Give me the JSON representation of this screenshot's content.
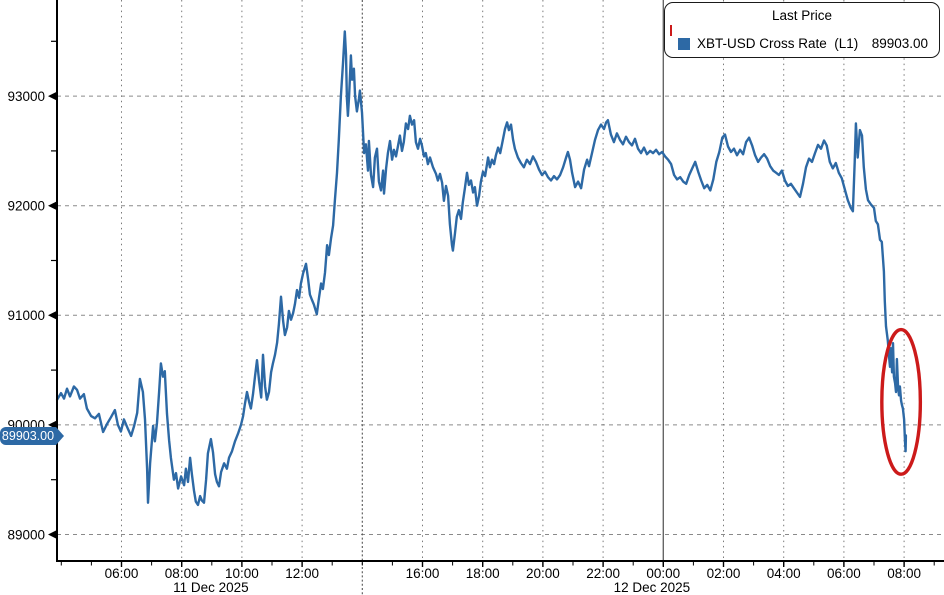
{
  "legend": {
    "title": "Last Price",
    "series": [
      {
        "swatch_color": "#2d69a5",
        "name": "XBT-USD Cross Rate  (L1)",
        "value": "89903.00"
      }
    ]
  },
  "last_price_badge": {
    "text": "89903.00",
    "value": 89903.0,
    "bg": "#2d69a5"
  },
  "annotation": {
    "type": "ellipse",
    "color": "#cc1a1a",
    "center_hour": 31.9,
    "center_price": 90210,
    "radius_hours": 0.64,
    "radius_price": 660
  },
  "chart_data": {
    "type": "line",
    "series_name": "XBT-USD Cross Rate (L1)",
    "line_color": "#2d69a5",
    "x_unit": "hours since 11 Dec 2025 00:00",
    "grid": "dashed",
    "legend_position": "top-right",
    "y_axis": {
      "ticks": [
        89000,
        90000,
        91000,
        92000,
        93000
      ],
      "minor_ticks": [
        89500,
        90500,
        91500,
        92500,
        93500
      ],
      "range_approx": [
        88750,
        93900
      ]
    },
    "x_axis": {
      "hour_labels": [
        {
          "t": 6,
          "label": "06:00"
        },
        {
          "t": 8,
          "label": "08:00"
        },
        {
          "t": 10,
          "label": "10:00"
        },
        {
          "t": 12,
          "label": "12:00"
        },
        {
          "t": 16,
          "label": "16:00"
        },
        {
          "t": 18,
          "label": "18:00"
        },
        {
          "t": 20,
          "label": "20:00"
        },
        {
          "t": 22,
          "label": "22:00"
        },
        {
          "t": 24,
          "label": "00:00"
        },
        {
          "t": 26,
          "label": "02:00"
        },
        {
          "t": 28,
          "label": "04:00"
        },
        {
          "t": 30,
          "label": "06:00"
        },
        {
          "t": 32,
          "label": "08:00"
        }
      ],
      "date_labels": [
        {
          "center_t": 8.97,
          "label": "11 Dec 2025"
        },
        {
          "center_t": 23.62,
          "label": "12 Dec 2025"
        }
      ],
      "day_separators": [
        {
          "t": 14,
          "style": "dotted"
        },
        {
          "t": 24,
          "style": "solid"
        }
      ],
      "minor_tick_hours": [
        4,
        33
      ]
    },
    "points": [
      [
        3.86,
        90230
      ],
      [
        3.99,
        90290
      ],
      [
        4.09,
        90240
      ],
      [
        4.19,
        90330
      ],
      [
        4.29,
        90260
      ],
      [
        4.42,
        90350
      ],
      [
        4.52,
        90320
      ],
      [
        4.62,
        90240
      ],
      [
        4.75,
        90280
      ],
      [
        4.85,
        90150
      ],
      [
        4.99,
        90080
      ],
      [
        5.12,
        90060
      ],
      [
        5.25,
        90100
      ],
      [
        5.39,
        89935
      ],
      [
        5.52,
        90010
      ],
      [
        5.65,
        90070
      ],
      [
        5.78,
        90135
      ],
      [
        5.88,
        90000
      ],
      [
        5.98,
        89940
      ],
      [
        6.08,
        90050
      ],
      [
        6.22,
        89960
      ],
      [
        6.32,
        89900
      ],
      [
        6.42,
        89990
      ],
      [
        6.52,
        90110
      ],
      [
        6.61,
        90420
      ],
      [
        6.71,
        90300
      ],
      [
        6.78,
        90050
      ],
      [
        6.85,
        89600
      ],
      [
        6.88,
        89290
      ],
      [
        6.95,
        89650
      ],
      [
        7.05,
        89990
      ],
      [
        7.11,
        89850
      ],
      [
        7.18,
        90020
      ],
      [
        7.25,
        90300
      ],
      [
        7.31,
        90560
      ],
      [
        7.38,
        90440
      ],
      [
        7.44,
        90490
      ],
      [
        7.51,
        90100
      ],
      [
        7.58,
        89860
      ],
      [
        7.64,
        89700
      ],
      [
        7.74,
        89500
      ],
      [
        7.81,
        89560
      ],
      [
        7.88,
        89420
      ],
      [
        7.98,
        89530
      ],
      [
        8.08,
        89450
      ],
      [
        8.14,
        89600
      ],
      [
        8.21,
        89480
      ],
      [
        8.28,
        89700
      ],
      [
        8.34,
        89550
      ],
      [
        8.41,
        89400
      ],
      [
        8.47,
        89300
      ],
      [
        8.54,
        89270
      ],
      [
        8.61,
        89350
      ],
      [
        8.67,
        89310
      ],
      [
        8.74,
        89290
      ],
      [
        8.81,
        89500
      ],
      [
        8.87,
        89740
      ],
      [
        8.97,
        89870
      ],
      [
        9.04,
        89750
      ],
      [
        9.11,
        89550
      ],
      [
        9.17,
        89480
      ],
      [
        9.24,
        89440
      ],
      [
        9.31,
        89570
      ],
      [
        9.41,
        89650
      ],
      [
        9.5,
        89600
      ],
      [
        9.57,
        89700
      ],
      [
        9.67,
        89760
      ],
      [
        9.77,
        89850
      ],
      [
        9.87,
        89920
      ],
      [
        9.97,
        90000
      ],
      [
        10.04,
        90080
      ],
      [
        10.1,
        90190
      ],
      [
        10.17,
        90300
      ],
      [
        10.24,
        90210
      ],
      [
        10.3,
        90150
      ],
      [
        10.37,
        90280
      ],
      [
        10.44,
        90450
      ],
      [
        10.5,
        90590
      ],
      [
        10.57,
        90400
      ],
      [
        10.64,
        90250
      ],
      [
        10.7,
        90640
      ],
      [
        10.77,
        90350
      ],
      [
        10.83,
        90230
      ],
      [
        10.9,
        90300
      ],
      [
        10.97,
        90480
      ],
      [
        11.03,
        90560
      ],
      [
        11.1,
        90640
      ],
      [
        11.17,
        90750
      ],
      [
        11.23,
        90920
      ],
      [
        11.3,
        91170
      ],
      [
        11.37,
        90950
      ],
      [
        11.43,
        90820
      ],
      [
        11.5,
        90890
      ],
      [
        11.56,
        91040
      ],
      [
        11.63,
        90960
      ],
      [
        11.7,
        91020
      ],
      [
        11.76,
        91100
      ],
      [
        11.83,
        91230
      ],
      [
        11.9,
        91160
      ],
      [
        11.96,
        91290
      ],
      [
        12.03,
        91380
      ],
      [
        12.13,
        91470
      ],
      [
        12.2,
        91330
      ],
      [
        12.26,
        91190
      ],
      [
        12.33,
        91140
      ],
      [
        12.39,
        91100
      ],
      [
        12.49,
        91010
      ],
      [
        12.56,
        91160
      ],
      [
        12.63,
        91290
      ],
      [
        12.69,
        91240
      ],
      [
        12.76,
        91390
      ],
      [
        12.83,
        91640
      ],
      [
        12.89,
        91550
      ],
      [
        12.96,
        91700
      ],
      [
        13.03,
        91820
      ],
      [
        13.09,
        92050
      ],
      [
        13.16,
        92300
      ],
      [
        13.22,
        92600
      ],
      [
        13.29,
        93000
      ],
      [
        13.36,
        93300
      ],
      [
        13.42,
        93590
      ],
      [
        13.46,
        93380
      ],
      [
        13.49,
        92980
      ],
      [
        13.52,
        92820
      ],
      [
        13.56,
        93000
      ],
      [
        13.62,
        93370
      ],
      [
        13.66,
        93150
      ],
      [
        13.72,
        93250
      ],
      [
        13.76,
        93000
      ],
      [
        13.82,
        92860
      ],
      [
        13.89,
        92980
      ],
      [
        13.92,
        93050
      ],
      [
        13.99,
        92850
      ],
      [
        14.06,
        92480
      ],
      [
        14.12,
        92560
      ],
      [
        14.19,
        92320
      ],
      [
        14.22,
        92590
      ],
      [
        14.29,
        92280
      ],
      [
        14.36,
        92170
      ],
      [
        14.42,
        92440
      ],
      [
        14.49,
        92520
      ],
      [
        14.55,
        92220
      ],
      [
        14.62,
        92140
      ],
      [
        14.69,
        92320
      ],
      [
        14.72,
        92110
      ],
      [
        14.79,
        92340
      ],
      [
        14.85,
        92480
      ],
      [
        14.92,
        92590
      ],
      [
        14.99,
        92420
      ],
      [
        15.05,
        92510
      ],
      [
        15.12,
        92450
      ],
      [
        15.19,
        92550
      ],
      [
        15.25,
        92640
      ],
      [
        15.32,
        92500
      ],
      [
        15.38,
        92580
      ],
      [
        15.45,
        92750
      ],
      [
        15.52,
        92700
      ],
      [
        15.58,
        92820
      ],
      [
        15.65,
        92740
      ],
      [
        15.72,
        92780
      ],
      [
        15.78,
        92580
      ],
      [
        15.85,
        92520
      ],
      [
        15.92,
        92610
      ],
      [
        15.98,
        92550
      ],
      [
        16.05,
        92450
      ],
      [
        16.11,
        92480
      ],
      [
        16.18,
        92380
      ],
      [
        16.25,
        92440
      ],
      [
        16.35,
        92350
      ],
      [
        16.45,
        92290
      ],
      [
        16.51,
        92230
      ],
      [
        16.58,
        92290
      ],
      [
        16.65,
        92210
      ],
      [
        16.71,
        92045
      ],
      [
        16.78,
        92180
      ],
      [
        16.85,
        92090
      ],
      [
        16.91,
        91830
      ],
      [
        16.98,
        91640
      ],
      [
        17.01,
        91590
      ],
      [
        17.08,
        91750
      ],
      [
        17.14,
        91900
      ],
      [
        17.21,
        91960
      ],
      [
        17.28,
        91880
      ],
      [
        17.34,
        92030
      ],
      [
        17.41,
        92160
      ],
      [
        17.48,
        92300
      ],
      [
        17.54,
        92190
      ],
      [
        17.61,
        92230
      ],
      [
        17.68,
        92120
      ],
      [
        17.74,
        92170
      ],
      [
        17.81,
        92000
      ],
      [
        17.88,
        92090
      ],
      [
        17.94,
        92220
      ],
      [
        18.01,
        92310
      ],
      [
        18.08,
        92270
      ],
      [
        18.18,
        92440
      ],
      [
        18.24,
        92350
      ],
      [
        18.31,
        92420
      ],
      [
        18.38,
        92380
      ],
      [
        18.44,
        92460
      ],
      [
        18.51,
        92530
      ],
      [
        18.58,
        92480
      ],
      [
        18.64,
        92560
      ],
      [
        18.74,
        92700
      ],
      [
        18.81,
        92760
      ],
      [
        18.87,
        92690
      ],
      [
        18.94,
        92740
      ],
      [
        19.01,
        92600
      ],
      [
        19.07,
        92520
      ],
      [
        19.17,
        92440
      ],
      [
        19.27,
        92390
      ],
      [
        19.37,
        92350
      ],
      [
        19.47,
        92420
      ],
      [
        19.57,
        92380
      ],
      [
        19.67,
        92450
      ],
      [
        19.77,
        92400
      ],
      [
        19.87,
        92330
      ],
      [
        19.97,
        92280
      ],
      [
        20.07,
        92310
      ],
      [
        20.17,
        92260
      ],
      [
        20.27,
        92230
      ],
      [
        20.37,
        92270
      ],
      [
        20.47,
        92240
      ],
      [
        20.57,
        92280
      ],
      [
        20.67,
        92350
      ],
      [
        20.77,
        92440
      ],
      [
        20.83,
        92490
      ],
      [
        20.9,
        92420
      ],
      [
        20.97,
        92300
      ],
      [
        21.07,
        92170
      ],
      [
        21.17,
        92220
      ],
      [
        21.27,
        92160
      ],
      [
        21.37,
        92330
      ],
      [
        21.47,
        92420
      ],
      [
        21.53,
        92360
      ],
      [
        21.63,
        92480
      ],
      [
        21.73,
        92600
      ],
      [
        21.83,
        92690
      ],
      [
        21.93,
        92740
      ],
      [
        22.03,
        92700
      ],
      [
        22.1,
        92760
      ],
      [
        22.16,
        92780
      ],
      [
        22.26,
        92650
      ],
      [
        22.36,
        92580
      ],
      [
        22.46,
        92660
      ],
      [
        22.56,
        92600
      ],
      [
        22.66,
        92560
      ],
      [
        22.76,
        92630
      ],
      [
        22.86,
        92580
      ],
      [
        22.96,
        92550
      ],
      [
        23.06,
        92610
      ],
      [
        23.16,
        92520
      ],
      [
        23.26,
        92480
      ],
      [
        23.36,
        92530
      ],
      [
        23.46,
        92470
      ],
      [
        23.56,
        92500
      ],
      [
        23.66,
        92480
      ],
      [
        23.76,
        92510
      ],
      [
        23.86,
        92470
      ],
      [
        23.96,
        92490
      ],
      [
        24.06,
        92450
      ],
      [
        24.16,
        92420
      ],
      [
        24.26,
        92380
      ],
      [
        24.36,
        92280
      ],
      [
        24.46,
        92240
      ],
      [
        24.56,
        92260
      ],
      [
        24.66,
        92220
      ],
      [
        24.76,
        92200
      ],
      [
        24.86,
        92280
      ],
      [
        24.96,
        92340
      ],
      [
        25.06,
        92400
      ],
      [
        25.16,
        92310
      ],
      [
        25.26,
        92230
      ],
      [
        25.36,
        92160
      ],
      [
        25.46,
        92190
      ],
      [
        25.56,
        92140
      ],
      [
        25.66,
        92240
      ],
      [
        25.76,
        92400
      ],
      [
        25.86,
        92490
      ],
      [
        25.96,
        92620
      ],
      [
        26.05,
        92650
      ],
      [
        26.15,
        92540
      ],
      [
        26.25,
        92490
      ],
      [
        26.35,
        92520
      ],
      [
        26.45,
        92460
      ],
      [
        26.55,
        92510
      ],
      [
        26.65,
        92470
      ],
      [
        26.75,
        92580
      ],
      [
        26.85,
        92620
      ],
      [
        26.95,
        92550
      ],
      [
        27.05,
        92460
      ],
      [
        27.15,
        92400
      ],
      [
        27.25,
        92440
      ],
      [
        27.35,
        92470
      ],
      [
        27.45,
        92430
      ],
      [
        27.55,
        92360
      ],
      [
        27.65,
        92320
      ],
      [
        27.75,
        92300
      ],
      [
        27.84,
        92280
      ],
      [
        27.94,
        92320
      ],
      [
        28.04,
        92230
      ],
      [
        28.14,
        92180
      ],
      [
        28.24,
        92200
      ],
      [
        28.34,
        92160
      ],
      [
        28.44,
        92120
      ],
      [
        28.54,
        92080
      ],
      [
        28.64,
        92200
      ],
      [
        28.74,
        92350
      ],
      [
        28.84,
        92430
      ],
      [
        28.94,
        92400
      ],
      [
        29.04,
        92480
      ],
      [
        29.14,
        92555
      ],
      [
        29.24,
        92520
      ],
      [
        29.34,
        92595
      ],
      [
        29.43,
        92550
      ],
      [
        29.53,
        92400
      ],
      [
        29.63,
        92340
      ],
      [
        29.73,
        92390
      ],
      [
        29.83,
        92300
      ],
      [
        29.93,
        92250
      ],
      [
        30.03,
        92150
      ],
      [
        30.13,
        92050
      ],
      [
        30.23,
        91980
      ],
      [
        30.3,
        91950
      ],
      [
        30.36,
        92400
      ],
      [
        30.4,
        92750
      ],
      [
        30.46,
        92440
      ],
      [
        30.53,
        92690
      ],
      [
        30.6,
        92640
      ],
      [
        30.66,
        92350
      ],
      [
        30.73,
        92150
      ],
      [
        30.8,
        92050
      ],
      [
        30.9,
        92010
      ],
      [
        31.0,
        91980
      ],
      [
        31.06,
        91860
      ],
      [
        31.13,
        91830
      ],
      [
        31.2,
        91690
      ],
      [
        31.26,
        91670
      ],
      [
        31.33,
        91400
      ],
      [
        31.36,
        91130
      ],
      [
        31.4,
        90900
      ],
      [
        31.46,
        90770
      ],
      [
        31.5,
        90620
      ],
      [
        31.53,
        90530
      ],
      [
        31.56,
        90700
      ],
      [
        31.6,
        90480
      ],
      [
        31.63,
        90745
      ],
      [
        31.66,
        90440
      ],
      [
        31.7,
        90380
      ],
      [
        31.73,
        90300
      ],
      [
        31.76,
        90600
      ],
      [
        31.8,
        90340
      ],
      [
        31.83,
        90270
      ],
      [
        31.86,
        90350
      ],
      [
        31.9,
        90220
      ],
      [
        31.93,
        90180
      ],
      [
        31.96,
        90150
      ],
      [
        32.0,
        90050
      ],
      [
        32.03,
        89850
      ],
      [
        32.05,
        89760
      ],
      [
        32.06,
        89903
      ]
    ]
  }
}
